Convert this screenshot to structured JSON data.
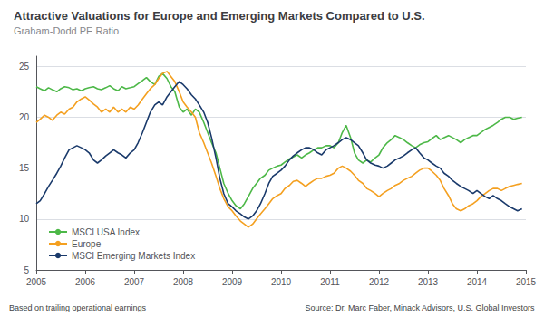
{
  "chart_data": {
    "type": "line",
    "title": "Attractive Valuations for Europe and Emerging Markets Compared to U.S.",
    "subtitle": "Graham-Dodd PE Ratio",
    "annotations": [
      "Based on trailing operational earnings",
      "Source: Dr. Marc Faber, Minack Advisors, U.S. Global Investors"
    ],
    "xlim": [
      2005.0,
      2015.0
    ],
    "xticks": [
      2005,
      2006,
      2007,
      2008,
      2009,
      2010,
      2011,
      2012,
      2013,
      2014,
      2015
    ],
    "ylim": [
      5,
      26
    ],
    "yticks": [
      5,
      10,
      15,
      20,
      25
    ],
    "grid": true,
    "legend": "lower left",
    "x": [
      2005.0,
      2005.08,
      2005.17,
      2005.25,
      2005.33,
      2005.42,
      2005.5,
      2005.58,
      2005.67,
      2005.75,
      2005.83,
      2005.92,
      2006.0,
      2006.08,
      2006.17,
      2006.25,
      2006.33,
      2006.42,
      2006.5,
      2006.58,
      2006.67,
      2006.75,
      2006.83,
      2006.92,
      2007.0,
      2007.08,
      2007.17,
      2007.25,
      2007.33,
      2007.42,
      2007.5,
      2007.58,
      2007.67,
      2007.75,
      2007.83,
      2007.92,
      2008.0,
      2008.08,
      2008.17,
      2008.25,
      2008.33,
      2008.42,
      2008.5,
      2008.58,
      2008.67,
      2008.75,
      2008.83,
      2008.92,
      2009.0,
      2009.08,
      2009.17,
      2009.25,
      2009.33,
      2009.42,
      2009.5,
      2009.58,
      2009.67,
      2009.75,
      2009.83,
      2009.92,
      2010.0,
      2010.08,
      2010.17,
      2010.25,
      2010.33,
      2010.42,
      2010.5,
      2010.58,
      2010.67,
      2010.75,
      2010.83,
      2010.92,
      2011.0,
      2011.08,
      2011.17,
      2011.25,
      2011.33,
      2011.42,
      2011.5,
      2011.58,
      2011.67,
      2011.75,
      2011.83,
      2011.92,
      2012.0,
      2012.08,
      2012.17,
      2012.25,
      2012.33,
      2012.42,
      2012.5,
      2012.58,
      2012.67,
      2012.75,
      2012.83,
      2012.92,
      2013.0,
      2013.08,
      2013.17,
      2013.25,
      2013.33,
      2013.42,
      2013.5,
      2013.58,
      2013.67,
      2013.75,
      2013.83,
      2013.92,
      2014.0,
      2014.08,
      2014.17,
      2014.25,
      2014.33,
      2014.42,
      2014.5,
      2014.58,
      2014.67,
      2014.75,
      2014.83,
      2014.92
    ],
    "series": [
      {
        "name": "MSCI USA Index",
        "color": "#4db848",
        "values": [
          23.0,
          22.8,
          22.6,
          22.9,
          22.7,
          22.5,
          22.8,
          23.0,
          22.9,
          22.7,
          22.8,
          22.6,
          22.8,
          22.9,
          23.0,
          22.8,
          22.7,
          22.9,
          23.1,
          22.8,
          22.6,
          23.0,
          22.8,
          22.9,
          23.0,
          23.3,
          23.6,
          23.9,
          23.5,
          23.2,
          24.0,
          24.3,
          23.8,
          23.0,
          22.5,
          21.0,
          20.5,
          20.8,
          20.2,
          20.8,
          20.5,
          19.5,
          18.5,
          17.5,
          16.5,
          15.0,
          13.5,
          12.5,
          11.8,
          11.3,
          11.0,
          11.5,
          12.2,
          13.0,
          13.5,
          14.0,
          14.3,
          14.8,
          15.0,
          15.2,
          15.3,
          15.6,
          15.9,
          16.1,
          16.3,
          16.0,
          16.3,
          16.5,
          16.8,
          17.0,
          17.0,
          17.2,
          17.2,
          17.0,
          17.5,
          18.5,
          19.2,
          18.0,
          16.5,
          15.8,
          15.5,
          15.8,
          15.6,
          16.0,
          16.3,
          17.0,
          17.5,
          17.8,
          18.2,
          18.0,
          17.8,
          17.5,
          17.2,
          17.0,
          17.3,
          17.5,
          17.6,
          17.9,
          18.2,
          17.8,
          18.0,
          18.2,
          18.0,
          17.8,
          17.5,
          17.8,
          18.0,
          18.2,
          18.2,
          18.5,
          18.8,
          19.0,
          19.2,
          19.5,
          19.8,
          20.0,
          20.0,
          19.8,
          19.9,
          20.0
        ]
      },
      {
        "name": "Europe",
        "color": "#f4a020",
        "values": [
          19.5,
          19.8,
          20.2,
          20.0,
          19.7,
          20.2,
          20.5,
          20.3,
          20.8,
          21.0,
          21.5,
          21.8,
          22.0,
          21.7,
          21.3,
          21.0,
          20.5,
          20.8,
          20.5,
          21.0,
          20.5,
          20.8,
          20.5,
          21.0,
          20.8,
          21.2,
          21.8,
          22.3,
          22.8,
          23.2,
          23.8,
          24.3,
          24.5,
          24.0,
          23.5,
          22.5,
          21.5,
          21.0,
          20.5,
          20.0,
          18.5,
          17.5,
          16.5,
          15.5,
          14.2,
          13.0,
          12.0,
          11.2,
          10.8,
          10.3,
          9.8,
          9.5,
          9.2,
          9.5,
          10.0,
          10.5,
          11.0,
          11.5,
          12.0,
          12.3,
          12.5,
          13.0,
          13.3,
          13.7,
          13.8,
          13.5,
          13.2,
          13.5,
          13.8,
          14.0,
          14.0,
          14.2,
          14.3,
          14.5,
          15.0,
          15.2,
          15.0,
          14.7,
          14.3,
          13.8,
          13.5,
          13.0,
          12.8,
          12.5,
          12.2,
          12.5,
          12.8,
          13.0,
          13.3,
          13.5,
          13.8,
          14.0,
          14.2,
          14.5,
          14.8,
          15.0,
          15.0,
          14.7,
          14.3,
          13.8,
          13.0,
          12.3,
          11.5,
          11.0,
          10.8,
          11.0,
          11.3,
          11.5,
          11.8,
          12.2,
          12.5,
          12.8,
          13.0,
          13.0,
          12.8,
          13.0,
          13.2,
          13.3,
          13.4,
          13.5
        ]
      },
      {
        "name": "MSCI Emerging Markets Index",
        "color": "#1a3a6b",
        "values": [
          11.5,
          11.8,
          12.5,
          13.2,
          13.8,
          14.5,
          15.2,
          16.0,
          16.8,
          17.0,
          17.2,
          17.0,
          16.8,
          16.5,
          15.8,
          15.5,
          15.8,
          16.2,
          16.5,
          16.8,
          16.5,
          16.3,
          16.0,
          16.5,
          16.8,
          17.5,
          18.5,
          19.5,
          20.5,
          21.2,
          21.5,
          21.2,
          22.0,
          22.5,
          23.0,
          23.5,
          23.2,
          22.8,
          22.2,
          21.8,
          21.2,
          20.5,
          19.5,
          18.0,
          16.0,
          14.0,
          12.5,
          11.5,
          11.2,
          10.8,
          10.5,
          10.2,
          10.0,
          10.3,
          10.8,
          11.5,
          12.5,
          13.5,
          14.2,
          14.5,
          14.8,
          15.2,
          15.8,
          16.2,
          16.5,
          16.8,
          17.0,
          17.0,
          16.8,
          16.5,
          16.3,
          16.8,
          17.0,
          17.2,
          17.5,
          17.8,
          18.0,
          17.8,
          17.5,
          17.2,
          16.5,
          15.8,
          15.5,
          15.3,
          15.2,
          15.0,
          15.2,
          15.5,
          15.8,
          16.0,
          16.2,
          16.5,
          16.8,
          17.0,
          16.5,
          16.0,
          15.8,
          15.5,
          15.2,
          15.0,
          14.5,
          14.2,
          13.8,
          13.5,
          13.2,
          13.0,
          12.8,
          12.5,
          12.8,
          12.5,
          12.2,
          12.0,
          12.3,
          12.0,
          11.8,
          11.5,
          11.2,
          11.0,
          10.8,
          11.0
        ]
      }
    ]
  }
}
